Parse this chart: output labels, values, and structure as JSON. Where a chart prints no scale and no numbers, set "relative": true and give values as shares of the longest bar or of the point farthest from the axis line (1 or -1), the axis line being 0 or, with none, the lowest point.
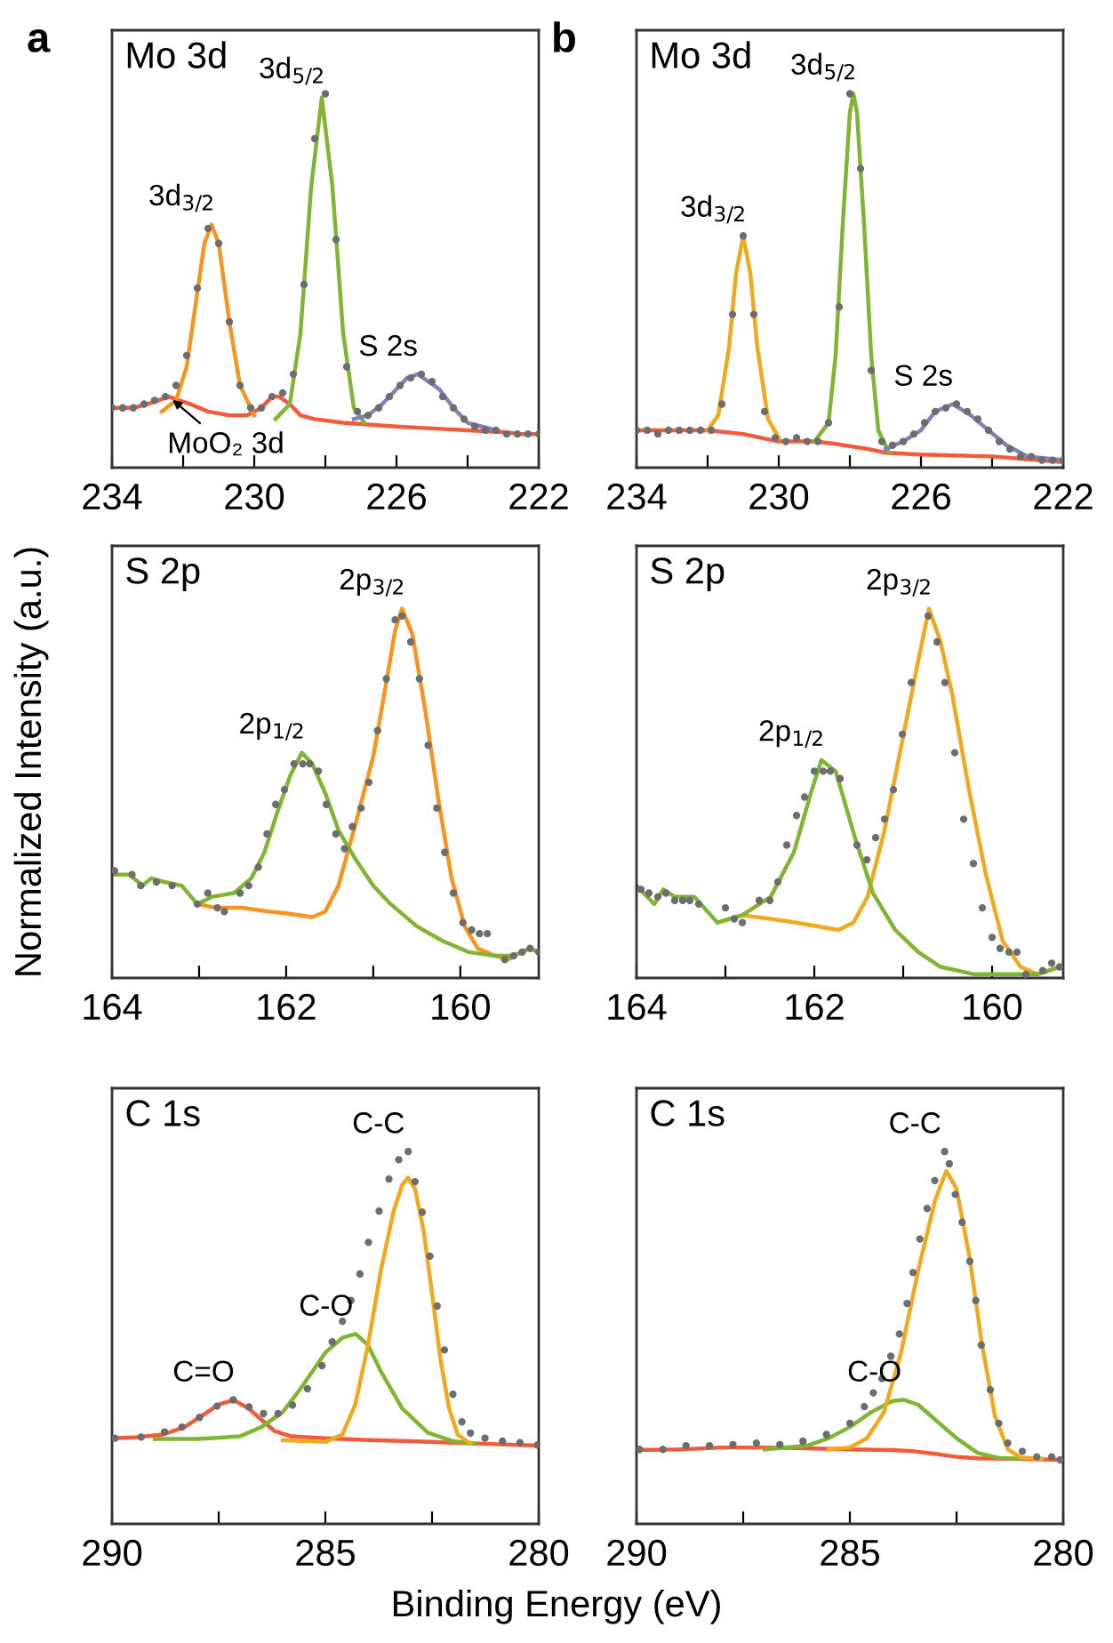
{
  "chart_data": [
    {
      "type": "line",
      "title": "Mo 3d",
      "relative": true,
      "tick_labels": "x",
      "xlim": [
        234,
        222
      ],
      "xticks": [
        234,
        {
          "value": 232,
          "label": null
        },
        230,
        {
          "value": 228,
          "label": null
        },
        226,
        {
          "value": 224,
          "label": null
        },
        222
      ],
      "annotations": [
        "a",
        {
          "text": "3d$_{3/2}$",
          "x": 231.2,
          "y": 0.65
        },
        {
          "text": "3d$_{5/2}$",
          "x": 228.1,
          "y": 0.99
        },
        {
          "text": "S 2s",
          "x": 225.4,
          "y": 0.25
        },
        {
          "text": "MoO₂ 3d",
          "x": 232.4,
          "y": 0.19
        }
      ],
      "series": [
        {
          "type": "line",
          "color": "#f15a3a",
          "x": [
            234,
            233.4,
            233.0,
            232.7,
            232.4,
            232.1,
            231.8,
            231.3,
            230.7,
            230.2,
            229.8,
            229.5,
            229.3,
            229.0,
            228.7,
            228.3,
            227.5,
            226,
            225,
            224,
            223,
            222.5,
            222
          ],
          "values": [
            0.16,
            0.16,
            0.17,
            0.18,
            0.19,
            0.18,
            0.17,
            0.15,
            0.14,
            0.14,
            0.16,
            0.19,
            0.19,
            0.17,
            0.14,
            0.13,
            0.12,
            0.11,
            0.105,
            0.1,
            0.095,
            0.09,
            0.09
          ]
        },
        {
          "type": "line",
          "color": "#f7941d",
          "x": [
            232.6,
            232.2,
            231.9,
            231.6,
            231.4,
            231.2,
            231.0,
            230.7,
            230.4,
            230.0
          ],
          "values": [
            0.15,
            0.18,
            0.27,
            0.47,
            0.6,
            0.65,
            0.6,
            0.39,
            0.22,
            0.14
          ]
        },
        {
          "type": "line",
          "color": "#7fb531",
          "x": [
            229.4,
            229.0,
            228.7,
            228.4,
            228.1,
            227.8,
            227.5,
            227.2,
            226.9
          ],
          "values": [
            0.13,
            0.17,
            0.36,
            0.75,
            0.99,
            0.75,
            0.36,
            0.16,
            0.12
          ]
        },
        {
          "type": "line",
          "color": "#8080c0",
          "x": [
            227.2,
            226.8,
            226.4,
            226.0,
            225.7,
            225.4,
            225.1,
            224.8,
            224.4,
            224.0,
            223.6,
            223.2
          ],
          "values": [
            0.13,
            0.14,
            0.17,
            0.21,
            0.24,
            0.25,
            0.23,
            0.21,
            0.16,
            0.12,
            0.11,
            0.1
          ]
        },
        {
          "type": "scatter",
          "marker": "circle",
          "color": "#6d6d6d",
          "x": [
            234.0,
            233.7,
            233.4,
            233.1,
            232.8,
            232.5,
            232.2,
            231.9,
            231.6,
            231.3,
            231.0,
            230.7,
            230.4,
            230.1,
            229.8,
            229.5,
            229.2,
            228.9,
            228.6,
            228.3,
            228.0,
            227.7,
            227.4,
            227.1,
            226.8,
            226.5,
            226.2,
            225.9,
            225.6,
            225.3,
            225.0,
            224.7,
            224.4,
            224.1,
            223.8,
            223.5,
            223.2,
            222.9,
            222.6,
            222.3,
            222.0
          ],
          "values": [
            0.16,
            0.16,
            0.16,
            0.17,
            0.18,
            0.19,
            0.22,
            0.3,
            0.48,
            0.64,
            0.6,
            0.39,
            0.22,
            0.16,
            0.16,
            0.19,
            0.2,
            0.25,
            0.49,
            0.88,
            1.0,
            0.61,
            0.27,
            0.15,
            0.14,
            0.16,
            0.19,
            0.22,
            0.24,
            0.25,
            0.23,
            0.19,
            0.16,
            0.13,
            0.11,
            0.1,
            0.1,
            0.09,
            0.09,
            0.09,
            0.09
          ]
        }
      ]
    },
    {
      "type": "line",
      "title": "Mo 3d",
      "relative": true,
      "tick_labels": "x",
      "xlim": [
        234,
        222
      ],
      "xticks": [
        234,
        {
          "value": 232,
          "label": null
        },
        230,
        {
          "value": 228,
          "label": null
        },
        226,
        {
          "value": 224,
          "label": null
        },
        222
      ],
      "annotations": [
        "b",
        {
          "text": "3d$_{3/2}$",
          "x": 231.0,
          "y": 0.62
        },
        {
          "text": "3d$_{5/2}$",
          "x": 227.9,
          "y": 1.0
        },
        {
          "text": "S 2s",
          "x": 225.1,
          "y": 0.17
        }
      ],
      "series": [
        {
          "type": "line",
          "color": "#f15a3a",
          "x": [
            234,
            232,
            231,
            230,
            229,
            228.5,
            227.5,
            227,
            226,
            224,
            222
          ],
          "values": [
            0.1,
            0.1,
            0.09,
            0.07,
            0.07,
            0.065,
            0.05,
            0.04,
            0.035,
            0.03,
            0.015
          ]
        },
        {
          "type": "line",
          "color": "#f0a81c",
          "x": [
            232.0,
            231.7,
            231.4,
            231.2,
            231.0,
            230.8,
            230.6,
            230.3,
            230.0
          ],
          "values": [
            0.1,
            0.14,
            0.32,
            0.52,
            0.62,
            0.52,
            0.32,
            0.13,
            0.08
          ]
        },
        {
          "type": "line",
          "color": "#7fb531",
          "x": [
            229.0,
            228.6,
            228.4,
            228.2,
            228.0,
            227.9,
            227.8,
            227.6,
            227.4,
            227.2,
            226.9
          ],
          "values": [
            0.07,
            0.12,
            0.3,
            0.65,
            0.95,
            1.0,
            0.95,
            0.65,
            0.3,
            0.1,
            0.04
          ]
        },
        {
          "type": "line",
          "color": "#8080c0",
          "x": [
            227.0,
            226.5,
            226.0,
            225.6,
            225.1,
            224.6,
            224.1,
            223.6,
            223.0,
            222.0
          ],
          "values": [
            0.05,
            0.07,
            0.1,
            0.15,
            0.17,
            0.14,
            0.1,
            0.06,
            0.03,
            0.02
          ]
        },
        {
          "type": "scatter",
          "marker": "circle",
          "color": "#6d6d6d",
          "x": [
            234.0,
            233.7,
            233.4,
            233.1,
            232.8,
            232.5,
            232.2,
            231.9,
            231.6,
            231.3,
            231.0,
            230.7,
            230.4,
            230.1,
            229.8,
            229.5,
            229.2,
            228.9,
            228.6,
            228.3,
            228.0,
            227.7,
            227.4,
            227.1,
            226.8,
            226.5,
            226.2,
            225.9,
            225.6,
            225.3,
            225.0,
            224.7,
            224.4,
            224.1,
            223.8,
            223.5,
            223.2,
            222.9,
            222.6,
            222.3,
            222.0
          ],
          "values": [
            0.1,
            0.1,
            0.09,
            0.1,
            0.1,
            0.1,
            0.1,
            0.1,
            0.17,
            0.41,
            0.62,
            0.41,
            0.15,
            0.08,
            0.07,
            0.08,
            0.07,
            0.07,
            0.12,
            0.43,
            1.0,
            0.8,
            0.26,
            0.07,
            0.06,
            0.07,
            0.09,
            0.12,
            0.15,
            0.16,
            0.17,
            0.15,
            0.13,
            0.1,
            0.07,
            0.05,
            0.03,
            0.03,
            0.02,
            0.02,
            0.02
          ]
        }
      ]
    },
    {
      "type": "line",
      "title": "S 2p",
      "ylabel": "Normalized Intensity (a.u.)",
      "relative": true,
      "tick_labels": "x",
      "xlim": [
        164,
        159.1
      ],
      "xticks": [
        164,
        {
          "value": 163,
          "label": null
        },
        162,
        {
          "value": 161,
          "label": null
        },
        160
      ],
      "annotations": [
        {
          "text": "2p$_{1/2}$",
          "x": 161.82,
          "y": 0.61
        },
        {
          "text": "2p$_{3/2}$",
          "x": 160.67,
          "y": 1.0
        }
      ],
      "series": [
        {
          "type": "line",
          "color": "#f7941d",
          "x": [
            163.02,
            162.8,
            162.5,
            162.2,
            162.0,
            161.7,
            161.55,
            161.4,
            161.2,
            161.0,
            160.85,
            160.75,
            160.67,
            160.55,
            160.4,
            160.25,
            160.1,
            159.95,
            159.8,
            159.6,
            159.45,
            159.3,
            159.2,
            159.1
          ],
          "values": [
            0.2,
            0.19,
            0.19,
            0.18,
            0.175,
            0.165,
            0.18,
            0.25,
            0.42,
            0.6,
            0.8,
            0.94,
            1.0,
            0.93,
            0.72,
            0.48,
            0.27,
            0.14,
            0.08,
            0.06,
            0.05,
            0.07,
            0.08,
            0.07
          ]
        },
        {
          "type": "line",
          "color": "#7fb531",
          "x": [
            163.97,
            163.8,
            163.65,
            163.55,
            163.4,
            163.2,
            163.02,
            162.85,
            162.6,
            162.4,
            162.25,
            162.1,
            161.95,
            161.82,
            161.7,
            161.55,
            161.4,
            161.2,
            161.0,
            160.8,
            160.5,
            160.2,
            159.9,
            159.6,
            159.4,
            159.3,
            159.2,
            159.1
          ],
          "values": [
            0.28,
            0.28,
            0.25,
            0.27,
            0.26,
            0.25,
            0.2,
            0.22,
            0.23,
            0.27,
            0.34,
            0.45,
            0.55,
            0.61,
            0.58,
            0.5,
            0.4,
            0.32,
            0.25,
            0.2,
            0.14,
            0.1,
            0.07,
            0.06,
            0.06,
            0.07,
            0.08,
            0.07
          ]
        },
        {
          "type": "scatter",
          "marker": "circle",
          "color": "#6d6d6d",
          "x": [
            163.97,
            163.77,
            163.67,
            163.49,
            163.31,
            163.02,
            162.9,
            162.79,
            162.71,
            162.53,
            162.43,
            162.32,
            162.22,
            162.12,
            162.02,
            161.91,
            161.81,
            161.73,
            161.63,
            161.54,
            161.43,
            161.33,
            161.24,
            161.14,
            161.05,
            160.95,
            160.85,
            160.75,
            160.67,
            160.57,
            160.47,
            160.37,
            160.27,
            160.18,
            160.08,
            159.97,
            159.87,
            159.78,
            159.69,
            159.49,
            159.39,
            159.29,
            159.2,
            159.1
          ],
          "values": [
            0.29,
            0.28,
            0.25,
            0.26,
            0.25,
            0.2,
            0.23,
            0.19,
            0.18,
            0.23,
            0.25,
            0.3,
            0.39,
            0.47,
            0.51,
            0.58,
            0.58,
            0.58,
            0.56,
            0.47,
            0.39,
            0.35,
            0.41,
            0.46,
            0.53,
            0.67,
            0.81,
            0.97,
            0.98,
            0.91,
            0.81,
            0.63,
            0.46,
            0.34,
            0.23,
            0.15,
            0.13,
            0.12,
            0.12,
            0.05,
            0.06,
            0.07,
            0.08,
            0.07
          ]
        }
      ]
    },
    {
      "type": "line",
      "title": "S 2p",
      "relative": true,
      "tick_labels": "x",
      "xlim": [
        164,
        159.2
      ],
      "xticks": [
        164,
        {
          "value": 163,
          "label": null
        },
        162,
        {
          "value": 161,
          "label": null
        },
        160
      ],
      "annotations": [
        {
          "text": "2p$_{1/2}$",
          "x": 161.92,
          "y": 0.59
        },
        {
          "text": "2p$_{3/2}$",
          "x": 160.71,
          "y": 1.0
        }
      ],
      "series": [
        {
          "type": "line",
          "color": "#f0a81c",
          "x": [
            163.09,
            162.81,
            162.49,
            162.2,
            161.73,
            161.56,
            161.4,
            161.21,
            161.02,
            160.83,
            160.71,
            160.58,
            160.45,
            160.26,
            160.07,
            159.88,
            159.68,
            159.49,
            159.24
          ],
          "values": [
            0.15,
            0.17,
            0.16,
            0.15,
            0.13,
            0.15,
            0.22,
            0.4,
            0.63,
            0.86,
            1.0,
            0.91,
            0.77,
            0.51,
            0.28,
            0.1,
            0.03,
            0.01,
            0.03
          ]
        },
        {
          "type": "line",
          "color": "#7fb531",
          "x": [
            164.0,
            163.8,
            163.7,
            163.57,
            163.35,
            163.09,
            162.81,
            162.49,
            162.23,
            162.04,
            161.92,
            161.76,
            161.53,
            161.34,
            161.09,
            160.83,
            160.58,
            160.2,
            159.68,
            159.49,
            159.24
          ],
          "values": [
            0.25,
            0.2,
            0.24,
            0.22,
            0.22,
            0.15,
            0.17,
            0.22,
            0.34,
            0.5,
            0.59,
            0.56,
            0.37,
            0.23,
            0.13,
            0.07,
            0.03,
            0.01,
            0.01,
            0.01,
            0.03
          ]
        },
        {
          "type": "scatter",
          "marker": "circle",
          "color": "#6d6d6d",
          "x": [
            163.95,
            163.86,
            163.76,
            163.67,
            163.57,
            163.48,
            163.4,
            163.3,
            163.0,
            162.9,
            162.81,
            162.62,
            162.5,
            162.41,
            162.31,
            162.2,
            162.11,
            162.0,
            161.9,
            161.82,
            161.71,
            161.52,
            161.41,
            161.31,
            161.21,
            161.11,
            161.01,
            160.91,
            160.72,
            160.62,
            160.53,
            160.42,
            160.32,
            160.21,
            160.11,
            160.0,
            159.91,
            159.81,
            159.72,
            159.62,
            159.43,
            159.33,
            159.24
          ],
          "values": [
            0.24,
            0.23,
            0.22,
            0.23,
            0.21,
            0.21,
            0.21,
            0.2,
            0.19,
            0.16,
            0.15,
            0.21,
            0.21,
            0.26,
            0.36,
            0.44,
            0.49,
            0.56,
            0.56,
            0.56,
            0.54,
            0.36,
            0.32,
            0.38,
            0.43,
            0.51,
            0.66,
            0.8,
            0.98,
            0.91,
            0.8,
            0.61,
            0.43,
            0.31,
            0.19,
            0.11,
            0.08,
            0.07,
            0.07,
            0.01,
            0.02,
            0.04,
            0.03
          ]
        }
      ]
    },
    {
      "type": "line",
      "title": "C 1s",
      "xlabel": "Binding Energy (eV)",
      "relative": true,
      "tick_labels": "x",
      "xlim": [
        290,
        280
      ],
      "xticks": [
        290,
        {
          "value": 287.5,
          "label": null
        },
        285,
        {
          "value": 282.5,
          "label": null
        },
        280
      ],
      "annotations": [
        {
          "text": "C=O",
          "x": 287.16,
          "y": 0.333
        },
        {
          "text": "C-O",
          "x": 284.29,
          "y": 0.51
        },
        {
          "text": "C-C",
          "x": 283.06,
          "y": 1.0
        }
      ],
      "series": [
        {
          "type": "line",
          "color": "#f15a3a",
          "x": [
            290,
            289.5,
            288.8,
            288.3,
            287.9,
            287.5,
            287.16,
            286.8,
            286.5,
            286.2,
            285.8,
            285,
            284,
            283,
            282,
            281,
            280
          ],
          "values": [
            0.23,
            0.232,
            0.24,
            0.26,
            0.29,
            0.32,
            0.333,
            0.31,
            0.28,
            0.25,
            0.235,
            0.23,
            0.225,
            0.222,
            0.218,
            0.214,
            0.21
          ]
        },
        {
          "type": "line",
          "color": "#7fb531",
          "x": [
            289.0,
            288.0,
            287.0,
            286.5,
            286.0,
            285.6,
            285.0,
            284.6,
            284.29,
            284.0,
            283.7,
            283.2,
            282.6,
            282.0,
            281.5
          ],
          "values": [
            0.228,
            0.228,
            0.235,
            0.26,
            0.3,
            0.36,
            0.46,
            0.5,
            0.51,
            0.48,
            0.41,
            0.31,
            0.245,
            0.222,
            0.215
          ]
        },
        {
          "type": "line",
          "color": "#f0a81c",
          "x": [
            286.0,
            285.0,
            284.6,
            284.3,
            284.0,
            283.7,
            283.4,
            283.2,
            283.06,
            282.9,
            282.7,
            282.5,
            282.3,
            282.1,
            281.9,
            281.6
          ],
          "values": [
            0.225,
            0.22,
            0.24,
            0.32,
            0.48,
            0.68,
            0.84,
            0.91,
            0.93,
            0.9,
            0.79,
            0.62,
            0.44,
            0.31,
            0.24,
            0.215
          ]
        },
        {
          "type": "scatter",
          "marker": "circle",
          "color": "#6d6d6d",
          "x": [
            289.93,
            289.32,
            288.77,
            288.36,
            287.95,
            287.54,
            287.16,
            286.79,
            286.45,
            286.11,
            285.77,
            285.42,
            285.08,
            284.84,
            284.6,
            284.4,
            284.19,
            283.99,
            283.74,
            283.51,
            283.28,
            283.06,
            282.9,
            282.73,
            282.55,
            282.38,
            282.21,
            282.01,
            281.8,
            281.6,
            281.26,
            280.85,
            280.44,
            280.03
          ],
          "values": [
            0.23,
            0.233,
            0.247,
            0.26,
            0.286,
            0.316,
            0.333,
            0.314,
            0.296,
            0.296,
            0.319,
            0.363,
            0.425,
            0.489,
            0.544,
            0.6,
            0.671,
            0.756,
            0.84,
            0.926,
            0.978,
            1.0,
            0.919,
            0.837,
            0.719,
            0.585,
            0.467,
            0.348,
            0.274,
            0.244,
            0.23,
            0.222,
            0.218,
            0.212
          ]
        }
      ]
    },
    {
      "type": "line",
      "title": "C 1s",
      "relative": true,
      "tick_labels": "x",
      "xlim": [
        290,
        280
      ],
      "xticks": [
        290,
        {
          "value": 287.5,
          "label": null
        },
        285,
        {
          "value": 282.5,
          "label": null
        },
        280
      ],
      "annotations": [
        {
          "text": "C-O",
          "x": 283.73,
          "y": 0.333
        },
        {
          "text": "C-C",
          "x": 282.78,
          "y": 1.0
        }
      ],
      "series": [
        {
          "type": "line",
          "color": "#f15a3a",
          "x": [
            290,
            289,
            288,
            287,
            286,
            285,
            284,
            283.5,
            283,
            282.5,
            282,
            281,
            280
          ],
          "values": [
            0.198,
            0.2,
            0.205,
            0.205,
            0.203,
            0.2,
            0.198,
            0.195,
            0.188,
            0.18,
            0.176,
            0.174,
            0.172
          ]
        },
        {
          "type": "line",
          "color": "#7fb531",
          "x": [
            287,
            286,
            285.5,
            285.0,
            284.5,
            284.0,
            283.73,
            283.4,
            283.0,
            282.5,
            282.0,
            281.5,
            281.0
          ],
          "values": [
            0.2,
            0.21,
            0.23,
            0.26,
            0.3,
            0.33,
            0.333,
            0.32,
            0.28,
            0.23,
            0.19,
            0.177,
            0.175
          ]
        },
        {
          "type": "line",
          "color": "#f0a81c",
          "x": [
            285.5,
            285.0,
            284.6,
            284.2,
            283.8,
            283.4,
            283.0,
            282.74,
            282.5,
            282.2,
            281.9,
            281.6,
            281.3,
            281.0,
            280.5
          ],
          "values": [
            0.2,
            0.205,
            0.23,
            0.3,
            0.46,
            0.68,
            0.87,
            0.948,
            0.9,
            0.72,
            0.48,
            0.29,
            0.2,
            0.178,
            0.175
          ]
        },
        {
          "type": "scatter",
          "marker": "circle",
          "color": "#6d6d6d",
          "x": [
            289.93,
            289.38,
            288.84,
            288.29,
            287.74,
            287.19,
            286.64,
            286.1,
            285.55,
            285.0,
            284.66,
            284.45,
            284.25,
            284.04,
            283.84,
            283.66,
            283.52,
            283.36,
            283.19,
            283.01,
            282.78,
            282.67,
            282.53,
            282.37,
            282.19,
            282.05,
            281.92,
            281.71,
            281.51,
            281.3,
            280.96,
            280.62,
            280.27,
            280.07
          ],
          "values": [
            0.2,
            0.2,
            0.21,
            0.21,
            0.213,
            0.217,
            0.213,
            0.222,
            0.24,
            0.27,
            0.315,
            0.352,
            0.39,
            0.45,
            0.51,
            0.592,
            0.675,
            0.765,
            0.847,
            0.922,
            1.0,
            0.967,
            0.885,
            0.81,
            0.705,
            0.6,
            0.48,
            0.36,
            0.27,
            0.217,
            0.195,
            0.18,
            0.18,
            0.172
          ]
        }
      ]
    }
  ]
}
